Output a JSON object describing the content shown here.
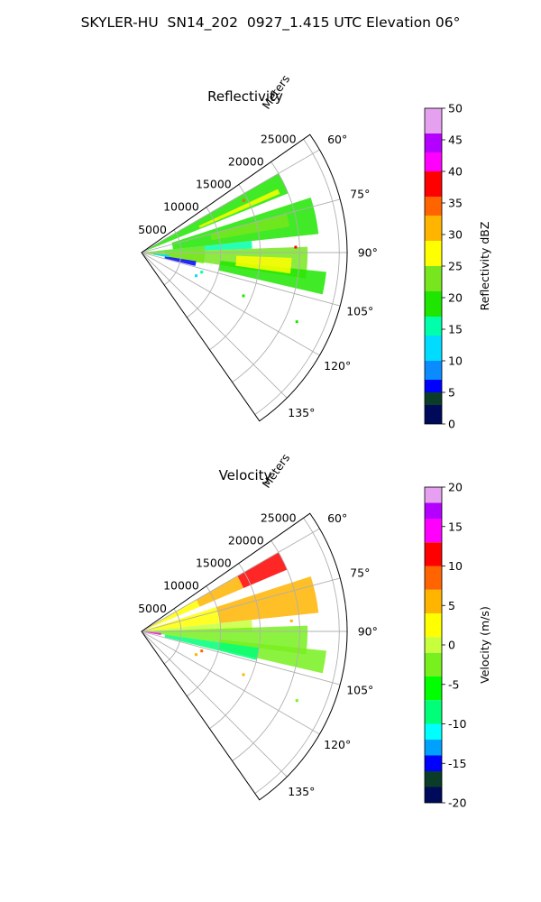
{
  "suptitle": "SKYLER-HU  SN14_202  0927_1.415 UTC Elevation 06°",
  "colors": {
    "axis": "#000000",
    "grid": "#b0b0b0"
  },
  "chart_data": [
    {
      "type": "polar-ppi",
      "title": "Reflectivity",
      "radial_label": "Meters",
      "radial_ticks": [
        "5000",
        "10000",
        "15000",
        "20000",
        "25000"
      ],
      "radial_values": [
        5000,
        10000,
        15000,
        20000,
        25000
      ],
      "rlim": [
        0,
        26000
      ],
      "angle_range_deg": [
        55,
        145
      ],
      "angle_ticks": [
        "60°",
        "75°",
        "90°",
        "105°",
        "120°",
        "135°"
      ],
      "angle_values": [
        60,
        75,
        90,
        105,
        120,
        135
      ],
      "grid": true,
      "colorbar": {
        "label": "Reflectivity dBZ",
        "range": [
          0,
          50
        ],
        "ticks": [
          "0",
          "5",
          "10",
          "15",
          "20",
          "25",
          "30",
          "35",
          "40",
          "45",
          "50"
        ],
        "tick_values": [
          0,
          5,
          10,
          15,
          20,
          25,
          30,
          35,
          40,
          45,
          50
        ],
        "stops": [
          {
            "v": 0,
            "c": "#000a5a"
          },
          {
            "v": 3,
            "c": "#0a3c28"
          },
          {
            "v": 5,
            "c": "#0000ff"
          },
          {
            "v": 7,
            "c": "#0a8cff"
          },
          {
            "v": 10,
            "c": "#00dcff"
          },
          {
            "v": 14,
            "c": "#00ffaa"
          },
          {
            "v": 17,
            "c": "#1ee600"
          },
          {
            "v": 21,
            "c": "#78e61e"
          },
          {
            "v": 25,
            "c": "#ffff00"
          },
          {
            "v": 29,
            "c": "#ffb400"
          },
          {
            "v": 33,
            "c": "#ff6400"
          },
          {
            "v": 36,
            "c": "#ff0000"
          },
          {
            "v": 40,
            "c": "#ff00ff"
          },
          {
            "v": 43,
            "c": "#b400ff"
          },
          {
            "v": 46,
            "c": "#e6a0f0"
          },
          {
            "v": 50,
            "c": "#fff0ff"
          }
        ]
      },
      "echo_regions": [
        {
          "az": [
            60,
            68
          ],
          "r": [
            0,
            20000
          ],
          "value": 20
        },
        {
          "az": [
            65,
            67
          ],
          "r": [
            8000,
            19000
          ],
          "value": 27
        },
        {
          "az": [
            72,
            84
          ],
          "r": [
            4000,
            22500
          ],
          "value": 19
        },
        {
          "az": [
            75,
            80
          ],
          "r": [
            9000,
            19000
          ],
          "value": 24
        },
        {
          "az": [
            84,
            88
          ],
          "r": [
            2000,
            14000
          ],
          "value": 15
        },
        {
          "az": [
            84,
            100
          ],
          "r": [
            0,
            8000
          ],
          "value": 23
        },
        {
          "az": [
            88,
            99
          ],
          "r": [
            3000,
            21000
          ],
          "value": 21
        },
        {
          "az": [
            96,
            103
          ],
          "r": [
            10000,
            23500
          ],
          "value": 19
        },
        {
          "az": [
            92,
            98
          ],
          "r": [
            12000,
            19000
          ],
          "value": 26
        },
        {
          "az": [
            99,
            104
          ],
          "r": [
            3000,
            7000
          ],
          "value": 6
        },
        {
          "az": [
            95,
            100
          ],
          "r": [
            1500,
            3500
          ],
          "value": 11
        }
      ],
      "echo_points": [
        {
          "az": 108,
          "r": 8000,
          "value": 14
        },
        {
          "az": 113,
          "r": 7500,
          "value": 12
        },
        {
          "az": 113,
          "r": 14000,
          "value": 18
        },
        {
          "az": 114,
          "r": 21500,
          "value": 20
        },
        {
          "az": 88,
          "r": 19500,
          "value": 38
        },
        {
          "az": 63,
          "r": 14500,
          "value": 35
        }
      ]
    },
    {
      "type": "polar-ppi",
      "title": "Velocity",
      "radial_label": "Meters",
      "radial_ticks": [
        "5000",
        "10000",
        "15000",
        "20000",
        "25000"
      ],
      "radial_values": [
        5000,
        10000,
        15000,
        20000,
        25000
      ],
      "rlim": [
        0,
        26000
      ],
      "angle_range_deg": [
        55,
        145
      ],
      "angle_ticks": [
        "60°",
        "75°",
        "90°",
        "105°",
        "120°",
        "135°"
      ],
      "angle_values": [
        60,
        75,
        90,
        105,
        120,
        135
      ],
      "grid": true,
      "colorbar": {
        "label": "Velocity (m/s)",
        "range": [
          -20,
          20
        ],
        "ticks": [
          "-20",
          "-15",
          "-10",
          "-5",
          "0",
          "5",
          "10",
          "15",
          "20"
        ],
        "tick_values": [
          -20,
          -15,
          -10,
          -5,
          0,
          5,
          10,
          15,
          20
        ],
        "stops": [
          {
            "v": -20,
            "c": "#000a5a"
          },
          {
            "v": -18,
            "c": "#0a3c28"
          },
          {
            "v": -16,
            "c": "#0000ff"
          },
          {
            "v": -14,
            "c": "#00a0ff"
          },
          {
            "v": -12,
            "c": "#00ffff"
          },
          {
            "v": -10,
            "c": "#00ff78"
          },
          {
            "v": -7,
            "c": "#00ff00"
          },
          {
            "v": -4,
            "c": "#78f01e"
          },
          {
            "v": -1,
            "c": "#c8ff3c"
          },
          {
            "v": 1,
            "c": "#ffff00"
          },
          {
            "v": 4,
            "c": "#ffb400"
          },
          {
            "v": 7,
            "c": "#ff6400"
          },
          {
            "v": 10,
            "c": "#ff0000"
          },
          {
            "v": 13,
            "c": "#ff00ff"
          },
          {
            "v": 16,
            "c": "#b400ff"
          },
          {
            "v": 18,
            "c": "#e6a0f0"
          },
          {
            "v": 20,
            "c": "#fff0ff"
          }
        ]
      },
      "echo_regions": [
        {
          "az": [
            60,
            67
          ],
          "r": [
            0,
            8000
          ],
          "value": 2
        },
        {
          "az": [
            60,
            67
          ],
          "r": [
            8000,
            14000
          ],
          "value": 5
        },
        {
          "az": [
            60,
            67
          ],
          "r": [
            14000,
            20000
          ],
          "value": 10
        },
        {
          "az": [
            72,
            84
          ],
          "r": [
            0,
            10000
          ],
          "value": 1
        },
        {
          "az": [
            72,
            84
          ],
          "r": [
            10000,
            22500
          ],
          "value": 4
        },
        {
          "az": [
            84,
            90
          ],
          "r": [
            0,
            14000
          ],
          "value": -1
        },
        {
          "az": [
            88,
            98
          ],
          "r": [
            0,
            21000
          ],
          "value": -4
        },
        {
          "az": [
            96,
            103
          ],
          "r": [
            10000,
            23500
          ],
          "value": -3
        },
        {
          "az": [
            98,
            104
          ],
          "r": [
            3000,
            15000
          ],
          "value": -8
        },
        {
          "az": [
            95,
            101
          ],
          "r": [
            500,
            2500
          ],
          "value": 15
        }
      ],
      "echo_points": [
        {
          "az": 108,
          "r": 8000,
          "value": 7
        },
        {
          "az": 113,
          "r": 7500,
          "value": 4
        },
        {
          "az": 113,
          "r": 14000,
          "value": 6
        },
        {
          "az": 114,
          "r": 21500,
          "value": -2
        },
        {
          "az": 86,
          "r": 19000,
          "value": 4
        }
      ]
    }
  ]
}
